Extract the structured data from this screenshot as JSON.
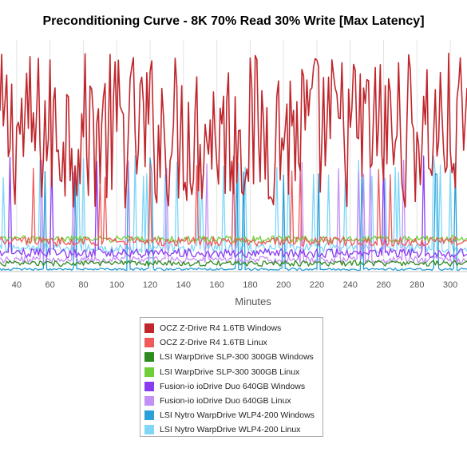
{
  "chart_data": {
    "type": "line",
    "title": "Preconditioning Curve - 8K 70% Read 30% Write [Max Latency]",
    "xlabel": "Minutes",
    "ylabel": "",
    "xlim": [
      30,
      310
    ],
    "x_ticks": [
      40,
      60,
      80,
      100,
      120,
      140,
      160,
      180,
      200,
      220,
      240,
      260,
      280,
      300
    ],
    "grid": "vertical",
    "legend_position": "bottom",
    "series": [
      {
        "name": "OCZ Z-Drive R4 1.6TB Windows",
        "color": "#c0262c",
        "baseline": 0.61,
        "amplitude": 0.34,
        "spike_rate": 0.6,
        "start": 30
      },
      {
        "name": "OCZ Z-Drive R4 1.6TB Linux",
        "color": "#f05a5a",
        "baseline": 0.13,
        "amplitude": 0.02,
        "spike_rate": 0.02,
        "start": 30
      },
      {
        "name": "LSI WarpDrive SLP-300 300GB Windows",
        "color": "#2e8b1e",
        "baseline": 0.035,
        "amplitude": 0.012,
        "spike_rate": 0.0,
        "start": 30
      },
      {
        "name": "LSI WarpDrive SLP-300 300GB Linux",
        "color": "#6fcf3a",
        "baseline": 0.14,
        "amplitude": 0.015,
        "spike_rate": 0.0,
        "start": 30
      },
      {
        "name": "Fusion-io ioDrive Duo 640GB Windows",
        "color": "#8a3df0",
        "baseline": 0.08,
        "amplitude": 0.02,
        "spike_rate": 0.02,
        "start": 30
      },
      {
        "name": "Fusion-io ioDrive Duo 640GB Linux",
        "color": "#c390f5",
        "baseline": 0.05,
        "amplitude": 0.015,
        "spike_rate": 0.05,
        "start": 30
      },
      {
        "name": "LSI Nytro WarpDrive WLP4-200 Windows",
        "color": "#2a9fd8",
        "baseline": 0.01,
        "amplitude": 0.005,
        "spike_rate": 0.05,
        "start": 30
      },
      {
        "name": "LSI Nytro WarpDrive WLP4-200 Linux",
        "color": "#7fd6f7",
        "baseline": 0.1,
        "amplitude": 0.02,
        "spike_rate": 0.07,
        "start": 30
      }
    ]
  }
}
